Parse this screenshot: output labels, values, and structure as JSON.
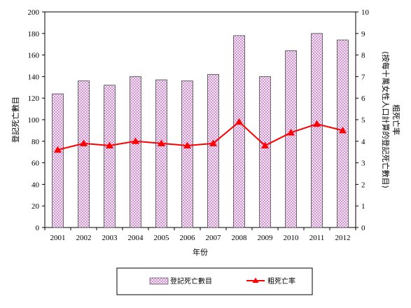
{
  "chart_data": {
    "type": "bar+line",
    "categories": [
      "2001",
      "2002",
      "2003",
      "2004",
      "2005",
      "2006",
      "2007",
      "2008",
      "2009",
      "2010",
      "2011",
      "2012"
    ],
    "series": [
      {
        "name": "登記死亡數目",
        "type": "bar",
        "axis": "left",
        "values": [
          124,
          136,
          132,
          140,
          137,
          136,
          142,
          178,
          140,
          164,
          180,
          174
        ],
        "color": "#cc99cc"
      },
      {
        "name": "粗死亡率",
        "type": "line",
        "axis": "right",
        "values": [
          3.6,
          3.9,
          3.8,
          4.0,
          3.9,
          3.8,
          3.9,
          4.9,
          3.8,
          4.4,
          4.8,
          4.5
        ],
        "color": "#ff0000"
      }
    ],
    "xlabel": "年份",
    "ylabel_left": "登記死亡數目",
    "ylabel_right_line1": "粗死亡率",
    "ylabel_right_line2": "(按每十萬女性人口計算的登記死亡數目)",
    "ylim_left": [
      0,
      200
    ],
    "yticks_left": [
      0,
      20,
      40,
      60,
      80,
      100,
      120,
      140,
      160,
      180,
      200
    ],
    "ylim_right": [
      0,
      10
    ],
    "yticks_right": [
      0,
      1,
      2,
      3,
      4,
      5,
      6,
      7,
      8,
      9,
      10
    ],
    "grid": false,
    "legend_position": "bottom"
  }
}
